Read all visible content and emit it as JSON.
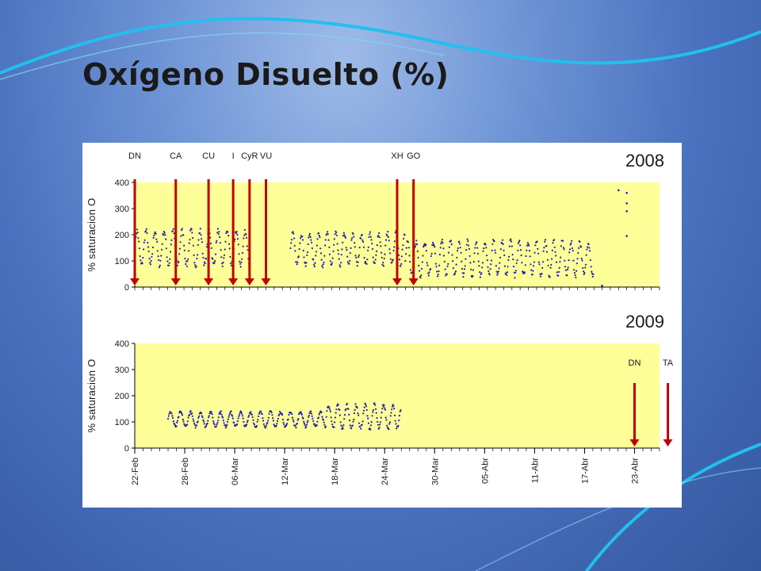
{
  "slide": {
    "title": "Oxígeno Disuelto (%)"
  },
  "colors": {
    "plot_bg": "#ffff99",
    "series": "#1f1fb4",
    "arrow": "#c00000",
    "text": "#1a1a1a"
  },
  "chart_data": [
    {
      "type": "scatter",
      "year_label": "2008",
      "ylabel": "% saturacion O",
      "ylim": [
        0,
        400
      ],
      "yticks": [
        0,
        100,
        200,
        300,
        400
      ],
      "xlim": [
        "2008-02-22",
        "2008-04-26"
      ],
      "grid": false,
      "event_markers": [
        {
          "label": "DN",
          "date": "2008-02-22"
        },
        {
          "label": "CA",
          "date": "2008-02-27"
        },
        {
          "label": "CU",
          "date": "2008-03-02"
        },
        {
          "label": "I",
          "date": "2008-03-05"
        },
        {
          "label": "CyR",
          "date": "2008-03-07"
        },
        {
          "label": "VU",
          "date": "2008-03-09"
        },
        {
          "label": "XH",
          "date": "2008-03-25"
        },
        {
          "label": "GO",
          "date": "2008-03-27"
        }
      ],
      "series": [
        {
          "segments": [
            {
              "start": "2008-02-22",
              "end": "2008-03-07",
              "mean": 150,
              "amplitude": 65,
              "period_days": 1.1
            },
            {
              "start": "2008-03-12",
              "end": "2008-03-26",
              "mean": 145,
              "amplitude": 60,
              "period_days": 1.05
            },
            {
              "start": "2008-03-26",
              "end": "2008-04-18",
              "mean": 110,
              "amplitude": 65,
              "period_days": 1.05
            }
          ],
          "points": [
            {
              "x": "2008-04-19",
              "y": 5
            },
            {
              "x": "2008-04-21",
              "y": 370
            },
            {
              "x": "2008-04-22",
              "y": 360
            },
            {
              "x": "2008-04-22",
              "y": 320
            },
            {
              "x": "2008-04-22",
              "y": 290
            },
            {
              "x": "2008-04-22",
              "y": 195
            }
          ]
        }
      ]
    },
    {
      "type": "scatter",
      "year_label": "2009",
      "ylabel": "% saturacion O",
      "ylim": [
        0,
        400
      ],
      "yticks": [
        0,
        100,
        200,
        300,
        400
      ],
      "xlim": [
        "2009-02-22",
        "2009-04-26"
      ],
      "grid": false,
      "xtick_labels": [
        "22-Feb",
        "28-Feb",
        "06-Mar",
        "12-Mar",
        "18-Mar",
        "24-Mar",
        "30-Mar",
        "05-Abr",
        "11-Abr",
        "17-Abr",
        "23-Abr"
      ],
      "event_markers": [
        {
          "label": "DN",
          "date": "2009-04-23"
        },
        {
          "label": "TA",
          "date": "2009-04-27"
        }
      ],
      "series": [
        {
          "segments": [
            {
              "start": "2009-02-26",
              "end": "2009-03-17",
              "mean": 110,
              "amplitude": 28,
              "period_days": 1.2
            },
            {
              "start": "2009-03-17",
              "end": "2009-03-26",
              "mean": 120,
              "amplitude": 45,
              "period_days": 1.1
            }
          ]
        }
      ]
    }
  ]
}
